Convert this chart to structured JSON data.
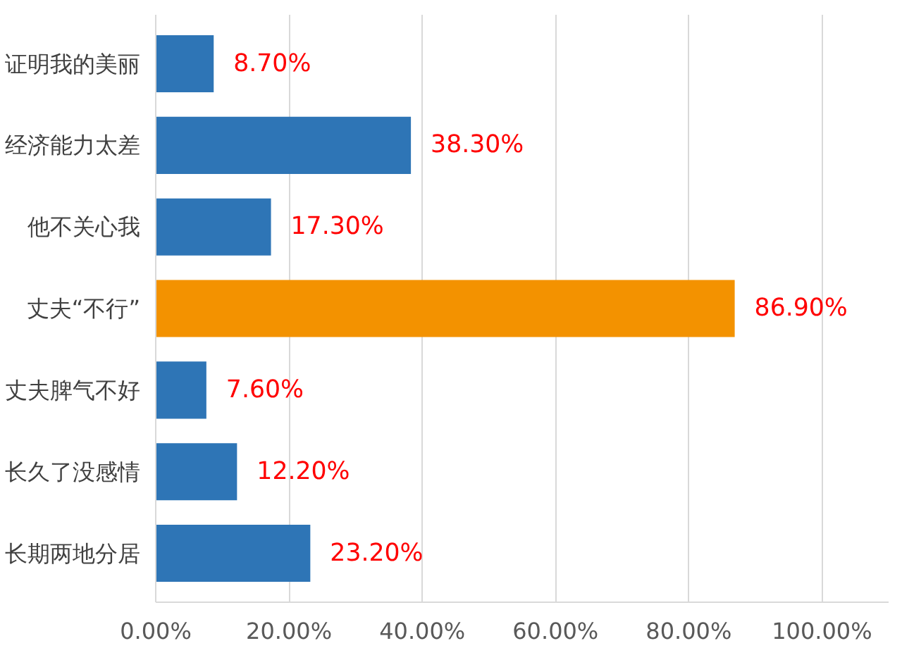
{
  "chart_data": {
    "type": "bar",
    "orientation": "horizontal",
    "categories": [
      "证明我的美丽",
      "经济能力太差",
      "他不关心我",
      "丈夫“不行”",
      "丈夫脾气不好",
      "长久了没感情",
      "长期两地分居"
    ],
    "values": [
      8.7,
      38.3,
      17.3,
      86.9,
      7.6,
      12.2,
      23.2
    ],
    "colors": [
      "#2e75b6",
      "#2e75b6",
      "#2e75b6",
      "#f39200",
      "#2e75b6",
      "#2e75b6",
      "#2e75b6"
    ],
    "value_labels": [
      "8.70%",
      "38.30%",
      "17.30%",
      "86.90%",
      "7.60%",
      "12.20%",
      "23.20%"
    ],
    "xlim": [
      0,
      110
    ],
    "xticks": [
      {
        "value": 0,
        "label": "0.00%"
      },
      {
        "value": 20,
        "label": "20.00%"
      },
      {
        "value": 40,
        "label": "40.00%"
      },
      {
        "value": 60,
        "label": "60.00%"
      },
      {
        "value": 80,
        "label": "80.00%"
      },
      {
        "value": 100,
        "label": "100.00%"
      }
    ],
    "grid": "x"
  }
}
